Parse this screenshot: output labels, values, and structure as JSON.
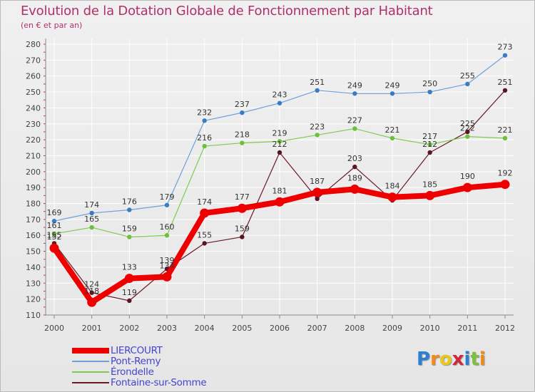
{
  "chart_data": {
    "type": "line",
    "title": "Evolution de la Dotation Globale de Fonctionnement par Habitant",
    "subtitle": "(en € et par an)",
    "xlabel": "",
    "ylabel": "",
    "categories": [
      "2000",
      "2001",
      "2002",
      "2003",
      "2004",
      "2005",
      "2006",
      "2007",
      "2008",
      "2009",
      "2010",
      "2011",
      "2012"
    ],
    "ylim": [
      110,
      280
    ],
    "yticks": [
      110,
      120,
      130,
      140,
      150,
      160,
      170,
      180,
      190,
      200,
      210,
      220,
      230,
      240,
      250,
      260,
      270,
      280
    ],
    "grid": true,
    "legend_position": "bottom-left",
    "series": [
      {
        "name": "Fontaine-sur-Somme",
        "color": "#6b1a24",
        "values": [
          155,
          124,
          119,
          139,
          155,
          159,
          212,
          183,
          203,
          182,
          212,
          225,
          251
        ],
        "labels": [
          "155",
          "124",
          "119",
          "139",
          "155",
          "159",
          "212",
          "",
          "203",
          "",
          "212",
          "225",
          "251"
        ]
      },
      {
        "name": "Érondelle",
        "color": "#7ecb50",
        "values": [
          161,
          165,
          159,
          160,
          216,
          218,
          219,
          223,
          227,
          221,
          217,
          222,
          221
        ],
        "labels": [
          "161",
          "165",
          "159",
          "160",
          "216",
          "218",
          "219",
          "223",
          "227",
          "221",
          "217",
          "222",
          "221"
        ]
      },
      {
        "name": "Pont-Remy",
        "color": "#6fa0d8",
        "values": [
          169,
          174,
          176,
          179,
          232,
          237,
          243,
          251,
          249,
          249,
          250,
          255,
          273
        ],
        "labels": [
          "169",
          "174",
          "176",
          "179",
          "232",
          "237",
          "243",
          "251",
          "249",
          "249",
          "250",
          "255",
          "273"
        ]
      },
      {
        "name": "LIERCOURT",
        "color": "#ee0000",
        "values": [
          152,
          118,
          133,
          134,
          174,
          177,
          181,
          187,
          189,
          184,
          185,
          190,
          192
        ],
        "labels": [
          "152",
          "118",
          "133",
          "134",
          "174",
          "177",
          "181",
          "187",
          "189",
          "184",
          "185",
          "190",
          "192"
        ]
      }
    ]
  },
  "legend": {
    "items": [
      {
        "label": "LIERCOURT",
        "color": "#ee0000",
        "thickness": 8
      },
      {
        "label": "Pont-Remy",
        "color": "#6fa0d8",
        "thickness": 2
      },
      {
        "label": "Érondelle",
        "color": "#7ecb50",
        "thickness": 2
      },
      {
        "label": "Fontaine-sur-Somme",
        "color": "#6b1a24",
        "thickness": 2
      }
    ]
  },
  "logo": {
    "text": "Proxiti",
    "letters": [
      {
        "ch": "P",
        "color": "#2a7fd0"
      },
      {
        "ch": "r",
        "color": "#f08a1c"
      },
      {
        "ch": "o",
        "color": "#e8c81a"
      },
      {
        "ch": "x",
        "color": "#d0283a"
      },
      {
        "ch": "i",
        "color": "#2a7fd0"
      },
      {
        "ch": "t",
        "color": "#7cc040"
      },
      {
        "ch": "i",
        "color": "#f08a1c"
      }
    ]
  }
}
